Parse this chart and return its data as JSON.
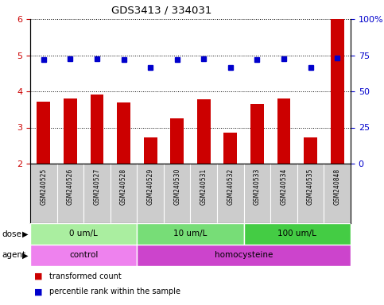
{
  "title": "GDS3413 / 334031",
  "samples": [
    "GSM240525",
    "GSM240526",
    "GSM240527",
    "GSM240528",
    "GSM240529",
    "GSM240530",
    "GSM240531",
    "GSM240532",
    "GSM240533",
    "GSM240534",
    "GSM240535",
    "GSM240848"
  ],
  "transformed_count": [
    3.72,
    3.8,
    3.92,
    3.7,
    2.72,
    3.26,
    3.78,
    2.86,
    3.64,
    3.8,
    2.72,
    6.0
  ],
  "percentile_rank_right": [
    72.0,
    72.5,
    72.5,
    72.0,
    66.75,
    72.0,
    72.5,
    66.75,
    72.0,
    72.5,
    66.75,
    73.0
  ],
  "bar_color": "#cc0000",
  "dot_color": "#0000cc",
  "ylim_left": [
    2,
    6
  ],
  "ylim_right": [
    0,
    100
  ],
  "yticks_left": [
    2,
    3,
    4,
    5,
    6
  ],
  "yticks_right": [
    0,
    25,
    50,
    75,
    100
  ],
  "ytick_labels_right": [
    "0",
    "25",
    "50",
    "75",
    "100%"
  ],
  "dose_groups": [
    {
      "label": "0 um/L",
      "start": 0,
      "end": 4,
      "color": "#aaeea0"
    },
    {
      "label": "10 um/L",
      "start": 4,
      "end": 8,
      "color": "#77dd77"
    },
    {
      "label": "100 um/L",
      "start": 8,
      "end": 12,
      "color": "#44cc44"
    }
  ],
  "agent_groups": [
    {
      "label": "control",
      "start": 0,
      "end": 4,
      "color": "#ee82ee"
    },
    {
      "label": "homocysteine",
      "start": 4,
      "end": 12,
      "color": "#cc44cc"
    }
  ],
  "legend_bar_label": "transformed count",
  "legend_dot_label": "percentile rank within the sample",
  "dose_label": "dose",
  "agent_label": "agent",
  "background_color": "#ffffff",
  "sample_bg_color": "#cccccc"
}
